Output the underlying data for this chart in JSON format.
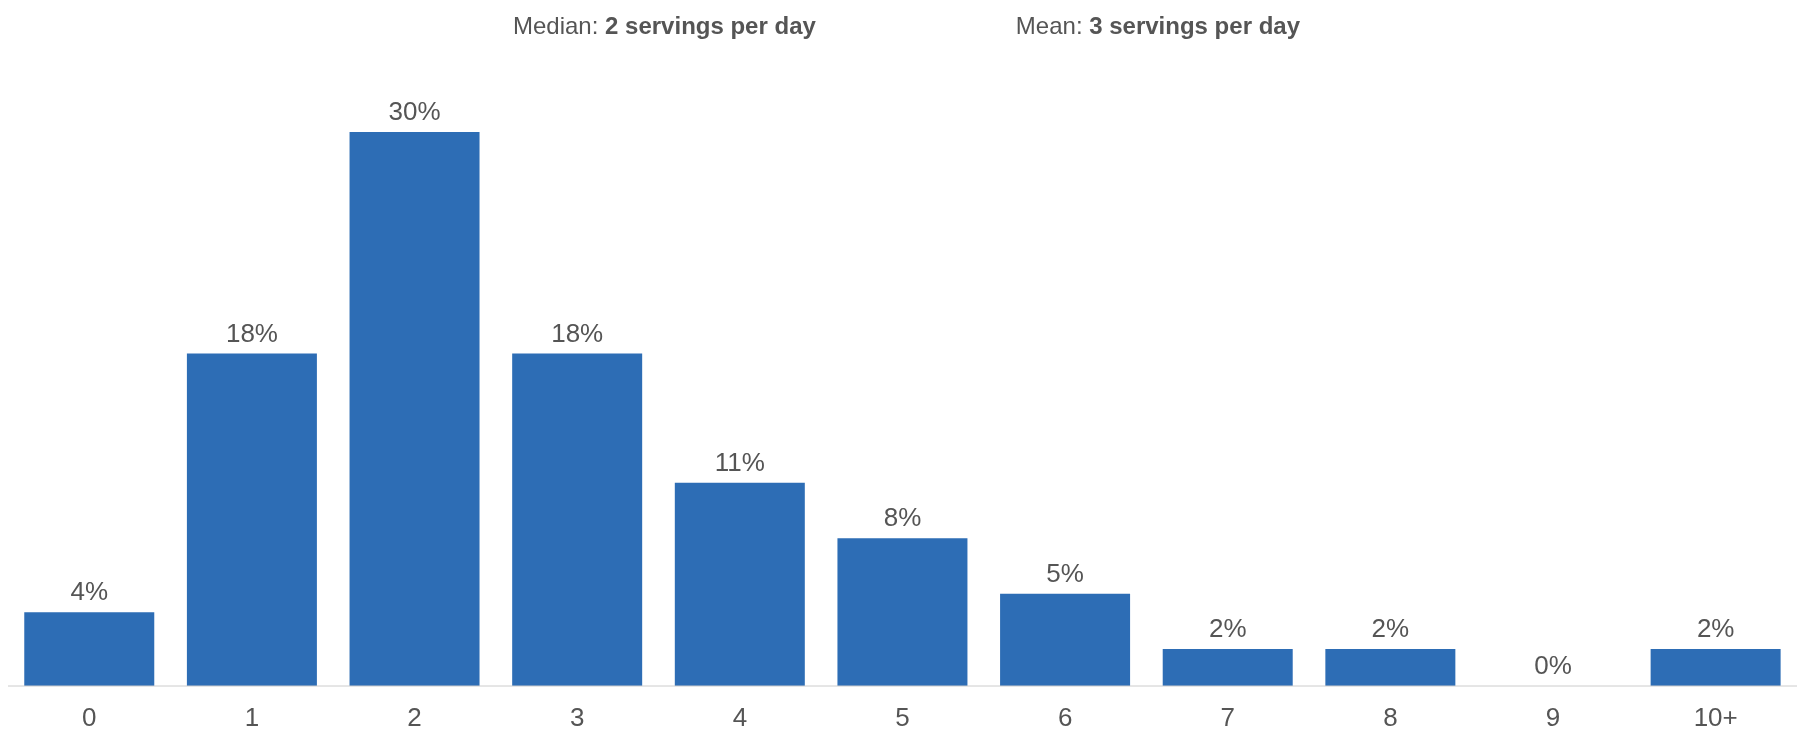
{
  "chart_data": {
    "type": "bar",
    "annotations": [
      "Median: 2 servings per day",
      "Mean: 3 servings per day"
    ],
    "categories": [
      "0",
      "1",
      "2",
      "3",
      "4",
      "5",
      "6",
      "7",
      "8",
      "9",
      "10+"
    ],
    "values": [
      4,
      18,
      30,
      18,
      11,
      8,
      5,
      2,
      2,
      0,
      2
    ],
    "value_labels": [
      "4%",
      "18%",
      "30%",
      "18%",
      "11%",
      "8%",
      "5%",
      "2%",
      "2%",
      "0%",
      "2%"
    ],
    "color": "#2d6db5",
    "grid": false
  }
}
